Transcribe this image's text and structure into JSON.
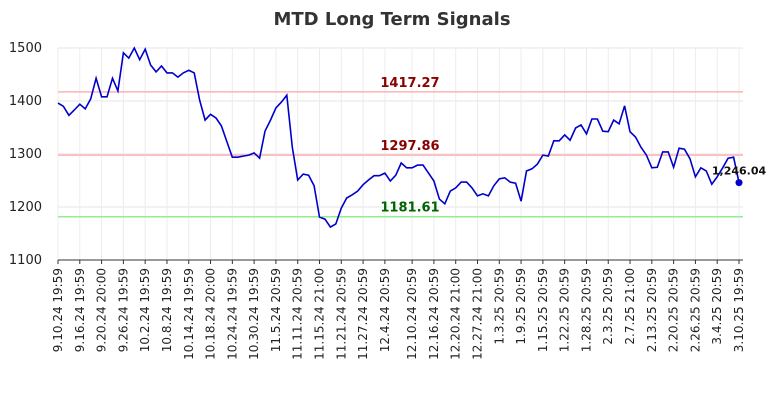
{
  "chart_data": {
    "type": "line",
    "title": "MTD Long Term Signals",
    "categories": [
      "9.10.24 19:59",
      null,
      null,
      null,
      "9.16.24 19:59",
      null,
      null,
      null,
      "9.20.24 20:00",
      null,
      null,
      null,
      "9.26.24 19:59",
      null,
      null,
      null,
      "10.2.24 19:59",
      null,
      null,
      null,
      "10.8.24 19:59",
      null,
      null,
      null,
      "10.14.24 19:59",
      null,
      null,
      null,
      "10.18.24 20:00",
      null,
      null,
      null,
      "10.24.24 19:59",
      null,
      null,
      null,
      "10.30.24 19:59",
      null,
      null,
      null,
      "11.5.24 20:59",
      null,
      null,
      null,
      "11.11.24 20:59",
      null,
      null,
      null,
      "11.15.24 21:00",
      null,
      null,
      null,
      "11.21.24 20:59",
      null,
      null,
      null,
      "11.27.24 20:59",
      null,
      null,
      null,
      "12.4.24 20:59",
      null,
      null,
      null,
      null,
      "12.10.24 20:59",
      null,
      null,
      null,
      "12.16.24 20:59",
      null,
      null,
      null,
      "12.20.24 21:00",
      null,
      null,
      null,
      "12.27.24 21:00",
      null,
      null,
      null,
      "1.3.25 20:59",
      null,
      null,
      null,
      "1.9.25 20:59",
      null,
      null,
      null,
      "1.15.25 20:59",
      null,
      null,
      null,
      "1.22.25 20:59",
      null,
      null,
      null,
      "1.28.25 20:59",
      null,
      null,
      null,
      "2.3.25 20:59",
      null,
      null,
      null,
      "2.7.25 21:00",
      null,
      null,
      null,
      "2.13.25 20:59",
      null,
      null,
      null,
      "2.20.25 20:59",
      null,
      null,
      null,
      "2.26.25 20:59",
      null,
      null,
      null,
      "3.4.25 20:59",
      null,
      null,
      null,
      "3.10.25 19:59"
    ],
    "values": [
      1396,
      1390,
      1373,
      1383,
      1394,
      1385,
      1404,
      1443,
      1408,
      1408,
      1443,
      1419,
      1491,
      1481,
      1500,
      1478,
      1498,
      1468,
      1455,
      1466,
      1453,
      1453,
      1445,
      1453,
      1458,
      1453,
      1402,
      1364,
      1375,
      1368,
      1353,
      1323,
      1294,
      1294,
      1296,
      1298,
      1302,
      1292,
      1343,
      1364,
      1387,
      1398,
      1411,
      1313,
      1251,
      1262,
      1260,
      1240,
      1181,
      1177,
      1162,
      1168,
      1198,
      1217,
      1223,
      1230,
      1242,
      1251,
      1259,
      1259,
      1264,
      1249,
      1260,
      1283,
      1274,
      1274,
      1279,
      1279,
      1264,
      1249,
      1215,
      1206,
      1230,
      1236,
      1247,
      1247,
      1236,
      1221,
      1225,
      1221,
      1240,
      1253,
      1255,
      1247,
      1245,
      1211,
      1268,
      1272,
      1281,
      1298,
      1296,
      1325,
      1325,
      1336,
      1326,
      1349,
      1355,
      1338,
      1366,
      1366,
      1343,
      1342,
      1364,
      1357,
      1391,
      1342,
      1332,
      1313,
      1298,
      1274,
      1275,
      1304,
      1304,
      1275,
      1311,
      1309,
      1291,
      1257,
      1274,
      1268,
      1243,
      1257,
      1274,
      1292,
      1294,
      1246.04
    ],
    "value_labels": [
      null,
      null,
      null,
      null,
      null,
      null,
      null,
      null,
      null,
      null,
      null,
      null,
      null,
      null,
      null,
      null,
      null,
      null,
      null,
      null,
      null,
      null,
      null,
      null,
      null,
      null,
      null,
      null,
      null,
      null,
      null,
      null,
      null,
      null,
      null,
      null,
      null,
      null,
      null,
      null,
      null,
      null,
      null,
      null,
      null,
      null,
      null,
      null,
      null,
      null,
      null,
      null,
      null,
      null,
      null,
      null,
      null,
      null,
      null,
      null,
      null,
      null,
      null,
      null,
      null,
      null,
      null,
      null,
      null,
      null,
      null,
      null,
      null,
      null,
      null,
      null,
      null,
      null,
      null,
      null,
      null,
      null,
      null,
      null,
      null,
      null,
      null,
      null,
      null,
      null,
      null,
      null,
      null,
      null,
      null,
      null,
      null,
      null,
      null,
      null,
      null,
      null,
      null,
      null,
      null,
      null,
      null,
      null,
      null,
      null,
      null,
      null,
      null,
      null,
      null,
      null,
      null,
      null,
      null,
      null,
      null,
      null,
      null,
      null,
      null,
      "1,246.04"
    ],
    "color": "#0000cc",
    "hlines": [
      {
        "value": 1417.27,
        "color": "#ffb3b3",
        "label_color": "#8b0000"
      },
      {
        "value": 1297.86,
        "color": "#ffb3b3",
        "label_color": "#8b0000"
      },
      {
        "value": 1181.61,
        "color": "#90ee90",
        "label_color": "#006400"
      }
    ],
    "ylim": [
      1100,
      1500
    ],
    "yticks": [
      1100,
      1200,
      1300,
      1400,
      1500
    ],
    "grid": true
  }
}
